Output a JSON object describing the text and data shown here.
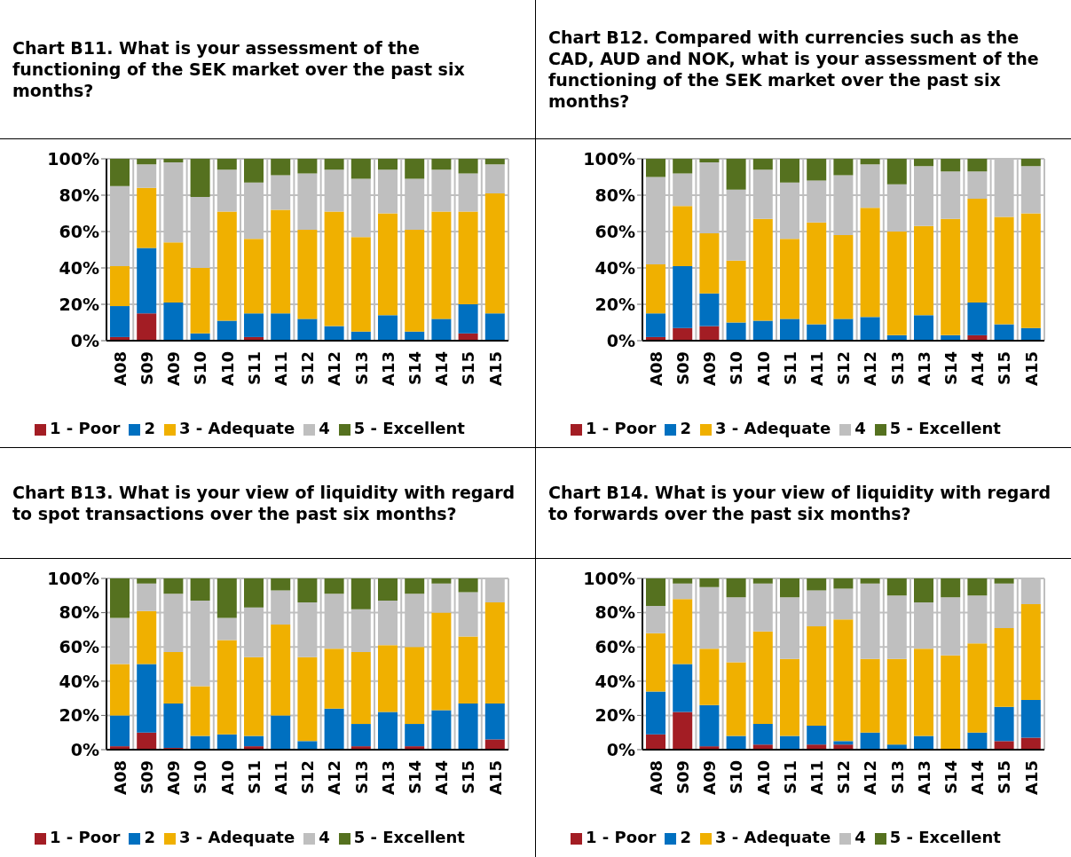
{
  "chart_data": [
    {
      "type": "bar",
      "stacked": true,
      "title": "Chart B11. What is your assessment of the functioning of the SEK market over the past six months?",
      "categories": [
        "A08",
        "S09",
        "A09",
        "S10",
        "A10",
        "S11",
        "A11",
        "S12",
        "A12",
        "S13",
        "A13",
        "S14",
        "A14",
        "S15",
        "A15"
      ],
      "ylim": [
        0,
        100
      ],
      "yticks": [
        {
          "value": 0,
          "label": "0%"
        },
        {
          "value": 20,
          "label": "20%"
        },
        {
          "value": 40,
          "label": "40%"
        },
        {
          "value": 60,
          "label": "60%"
        },
        {
          "value": 80,
          "label": "80%"
        },
        {
          "value": 100,
          "label": "100%"
        }
      ],
      "grid": true,
      "legend": "bottom",
      "series": [
        {
          "name": "1 - Poor",
          "color": "#a31d24",
          "values": [
            2,
            15,
            0,
            0,
            0,
            2,
            0,
            0,
            0,
            0,
            0,
            0,
            0,
            4,
            0
          ]
        },
        {
          "name": "2",
          "color": "#0070c0",
          "values": [
            17,
            36,
            21,
            4,
            11,
            13,
            15,
            12,
            8,
            5,
            14,
            5,
            12,
            16,
            15
          ]
        },
        {
          "name": "3 - Adequate",
          "color": "#f0b000",
          "values": [
            22,
            33,
            33,
            36,
            60,
            41,
            57,
            49,
            63,
            52,
            56,
            56,
            59,
            51,
            66
          ]
        },
        {
          "name": "4",
          "color": "#bfbfbf",
          "values": [
            44,
            13,
            44,
            39,
            23,
            31,
            19,
            31,
            23,
            32,
            24,
            28,
            23,
            21,
            16
          ]
        },
        {
          "name": "5 - Excellent",
          "color": "#55711f",
          "values": [
            15,
            3,
            2,
            21,
            6,
            13,
            9,
            8,
            6,
            11,
            6,
            11,
            6,
            8,
            3
          ]
        }
      ]
    },
    {
      "type": "bar",
      "stacked": true,
      "title": "Chart B12. Compared with currencies such as the CAD, AUD and NOK, what is your assessment of the functioning of the SEK market over the past six months?",
      "categories": [
        "A08",
        "S09",
        "A09",
        "S10",
        "A10",
        "S11",
        "A11",
        "S12",
        "A12",
        "S13",
        "A13",
        "S14",
        "A14",
        "S15",
        "A15"
      ],
      "ylim": [
        0,
        100
      ],
      "yticks": [
        {
          "value": 0,
          "label": "0%"
        },
        {
          "value": 20,
          "label": "20%"
        },
        {
          "value": 40,
          "label": "40%"
        },
        {
          "value": 60,
          "label": "60%"
        },
        {
          "value": 80,
          "label": "80%"
        },
        {
          "value": 100,
          "label": "100%"
        }
      ],
      "grid": true,
      "legend": "bottom",
      "series": [
        {
          "name": "1 - Poor",
          "color": "#a31d24",
          "values": [
            2,
            7,
            8,
            0,
            0,
            0,
            0,
            0,
            0,
            0,
            0,
            0,
            3,
            0,
            0
          ]
        },
        {
          "name": "2",
          "color": "#0070c0",
          "values": [
            13,
            34,
            18,
            10,
            11,
            12,
            9,
            12,
            13,
            3,
            14,
            3,
            18,
            9,
            7
          ]
        },
        {
          "name": "3 - Adequate",
          "color": "#f0b000",
          "values": [
            27,
            33,
            33,
            34,
            56,
            44,
            56,
            46,
            60,
            57,
            49,
            64,
            57,
            59,
            63
          ]
        },
        {
          "name": "4",
          "color": "#bfbfbf",
          "values": [
            48,
            18,
            39,
            39,
            27,
            31,
            23,
            33,
            24,
            26,
            33,
            26,
            15,
            32,
            26
          ]
        },
        {
          "name": "5 - Excellent",
          "color": "#55711f",
          "values": [
            10,
            8,
            2,
            17,
            6,
            13,
            12,
            9,
            3,
            14,
            4,
            7,
            7,
            0,
            4
          ]
        }
      ]
    },
    {
      "type": "bar",
      "stacked": true,
      "title": "Chart B13. What is your view of liquidity with regard to spot transactions over the past six months?",
      "categories": [
        "A08",
        "S09",
        "A09",
        "S10",
        "A10",
        "S11",
        "A11",
        "S12",
        "A12",
        "S13",
        "A13",
        "S14",
        "A14",
        "S15",
        "A15"
      ],
      "ylim": [
        0,
        100
      ],
      "yticks": [
        {
          "value": 0,
          "label": "0%"
        },
        {
          "value": 20,
          "label": "20%"
        },
        {
          "value": 40,
          "label": "40%"
        },
        {
          "value": 60,
          "label": "60%"
        },
        {
          "value": 80,
          "label": "80%"
        },
        {
          "value": 100,
          "label": "100%"
        }
      ],
      "grid": true,
      "legend": "bottom",
      "series": [
        {
          "name": "1 - Poor",
          "color": "#a31d24",
          "values": [
            2,
            10,
            1,
            0,
            0,
            2,
            0,
            0,
            0,
            2,
            0,
            2,
            0,
            0,
            6
          ]
        },
        {
          "name": "2",
          "color": "#0070c0",
          "values": [
            18,
            40,
            26,
            8,
            9,
            6,
            20,
            5,
            24,
            13,
            22,
            13,
            23,
            27,
            21
          ]
        },
        {
          "name": "3 - Adequate",
          "color": "#f0b000",
          "values": [
            30,
            31,
            30,
            29,
            55,
            46,
            53,
            49,
            35,
            42,
            39,
            45,
            57,
            39,
            59
          ]
        },
        {
          "name": "4",
          "color": "#bfbfbf",
          "values": [
            27,
            16,
            34,
            50,
            13,
            29,
            20,
            32,
            32,
            25,
            26,
            31,
            17,
            26,
            14
          ]
        },
        {
          "name": "5 - Excellent",
          "color": "#55711f",
          "values": [
            23,
            3,
            9,
            13,
            23,
            17,
            7,
            14,
            9,
            18,
            13,
            9,
            3,
            8,
            0
          ]
        }
      ]
    },
    {
      "type": "bar",
      "stacked": true,
      "title": "Chart B14. What is your view of liquidity with regard to forwards over the past six months?",
      "categories": [
        "A08",
        "S09",
        "A09",
        "S10",
        "A10",
        "S11",
        "A11",
        "S12",
        "A12",
        "S13",
        "A13",
        "S14",
        "A14",
        "S15",
        "A15"
      ],
      "ylim": [
        0,
        100
      ],
      "yticks": [
        {
          "value": 0,
          "label": "0%"
        },
        {
          "value": 20,
          "label": "20%"
        },
        {
          "value": 40,
          "label": "40%"
        },
        {
          "value": 60,
          "label": "60%"
        },
        {
          "value": 80,
          "label": "80%"
        },
        {
          "value": 100,
          "label": "100%"
        }
      ],
      "grid": true,
      "legend": "bottom",
      "series": [
        {
          "name": "1 - Poor",
          "color": "#a31d24",
          "values": [
            9,
            22,
            2,
            0,
            3,
            0,
            3,
            3,
            0,
            0,
            0,
            0,
            0,
            5,
            7
          ]
        },
        {
          "name": "2",
          "color": "#0070c0",
          "values": [
            25,
            28,
            24,
            8,
            12,
            8,
            11,
            2,
            10,
            3,
            8,
            0,
            10,
            20,
            22
          ]
        },
        {
          "name": "3 - Adequate",
          "color": "#f0b000",
          "values": [
            34,
            38,
            33,
            43,
            54,
            45,
            58,
            71,
            43,
            50,
            51,
            55,
            52,
            46,
            56
          ]
        },
        {
          "name": "4",
          "color": "#bfbfbf",
          "values": [
            16,
            9,
            36,
            38,
            28,
            36,
            21,
            18,
            44,
            37,
            27,
            34,
            28,
            26,
            15
          ]
        },
        {
          "name": "5 - Excellent",
          "color": "#55711f",
          "values": [
            16,
            3,
            5,
            11,
            3,
            11,
            7,
            6,
            3,
            10,
            14,
            11,
            10,
            3,
            0
          ]
        }
      ]
    }
  ]
}
